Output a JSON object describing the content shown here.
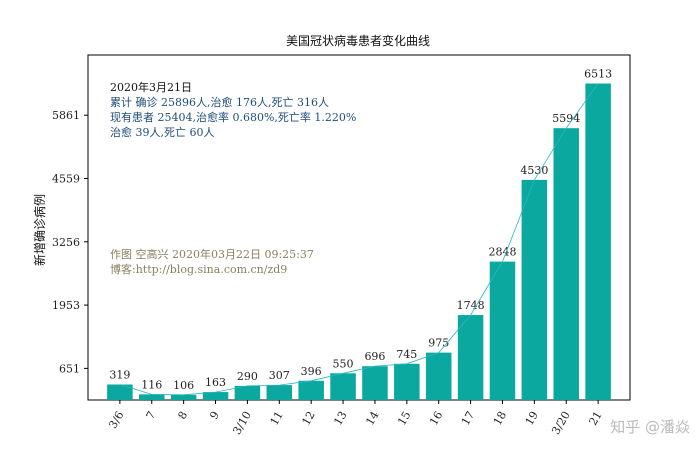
{
  "chart_data": {
    "type": "bar",
    "title": "美国冠状病毒患者变化曲线",
    "ylabel": "新增确诊病例",
    "categories": [
      "3/6",
      "7",
      "8",
      "9",
      "3/10",
      "11",
      "12",
      "13",
      "14",
      "15",
      "16",
      "17",
      "18",
      "19",
      "3/20",
      "21"
    ],
    "values": [
      319,
      116,
      106,
      163,
      290,
      307,
      396,
      550,
      696,
      745,
      975,
      1748,
      2848,
      4530,
      5594,
      6513
    ],
    "yticks": [
      651,
      1953,
      3256,
      4559,
      5861
    ],
    "ylim": [
      0,
      7100
    ],
    "bar_color": "#0aa89e",
    "trend_color": "#2bb6c6",
    "grid": false,
    "legend": "none"
  },
  "annotations": {
    "info_color": "#1f4e79",
    "credit_color": "#8a8060",
    "info_lines": [
      "2020年3月21日",
      "累计 确诊 25896人,治愈 176人,死亡 316人",
      "现有患者 25404,治愈率 0.680%,死亡率 1.220%",
      "治愈 39人,死亡 60人"
    ],
    "credit_lines": [
      "作图 空高兴 2020年03月22日 09:25:37",
      "博客:http://blog.sina.com.cn/zd9"
    ]
  },
  "watermark": "知乎 @潘焱"
}
